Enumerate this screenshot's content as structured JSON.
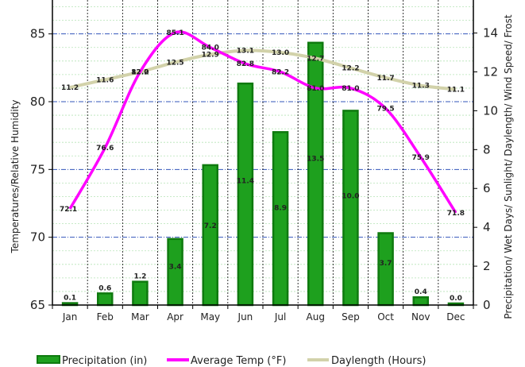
{
  "chart_data": {
    "type": "bar",
    "categories": [
      "Jan",
      "Feb",
      "Mar",
      "Apr",
      "May",
      "Jun",
      "Jul",
      "Aug",
      "Sep",
      "Oct",
      "Nov",
      "Dec"
    ],
    "left_axis": {
      "label": "Temperatures/Relative Humidity",
      "min": 65,
      "max": 87.5,
      "ticks": [
        65,
        70,
        75,
        80,
        85
      ]
    },
    "right_axis": {
      "label": "Precipitation/ Wet Days/ Sunlight/ Daylength/ Wind Speed/ Frost",
      "min": 0,
      "max": 15.7,
      "ticks": [
        0,
        2,
        4,
        6,
        8,
        10,
        12,
        14
      ]
    },
    "series": [
      {
        "name": "Precipitation (in)",
        "kind": "bar",
        "axis": "right",
        "color": "#1ea01e",
        "border": "#0f7a0f",
        "values": [
          0.1,
          0.6,
          1.2,
          3.4,
          7.2,
          11.4,
          8.9,
          13.5,
          10.0,
          3.7,
          0.4,
          0.0
        ],
        "labels": [
          "0.1",
          "0.6",
          "1.2",
          "3.4",
          "7.2",
          "11.4",
          "8.9",
          "13.5",
          "10.0",
          "3.7",
          "0.4",
          "0.0"
        ]
      },
      {
        "name": "Average Temp (°F)",
        "kind": "line",
        "axis": "left",
        "color": "#ff00ff",
        "values": [
          72.1,
          76.6,
          82.2,
          85.1,
          84.0,
          82.8,
          82.2,
          81.0,
          81.0,
          79.5,
          75.9,
          71.8
        ],
        "labels": [
          "72.1",
          "76.6",
          "82.2",
          "85.1",
          "84.0",
          "82.8",
          "82.2",
          "81.0",
          "81.0",
          "79.5",
          "75.9",
          "71.8"
        ]
      },
      {
        "name": "Daylength (Hours)",
        "kind": "line",
        "axis": "right",
        "color": "#d2d2aa",
        "values": [
          11.2,
          11.6,
          12.0,
          12.5,
          12.9,
          13.1,
          13.0,
          12.7,
          12.2,
          11.7,
          11.3,
          11.1
        ],
        "labels": [
          "11.2",
          "11.6",
          "12.0",
          "12.5",
          "12.9",
          "13.1",
          "13.0",
          "12.7",
          "12.2",
          "11.7",
          "11.3",
          "11.1"
        ]
      }
    ],
    "grid": true,
    "legend_position": "bottom"
  }
}
